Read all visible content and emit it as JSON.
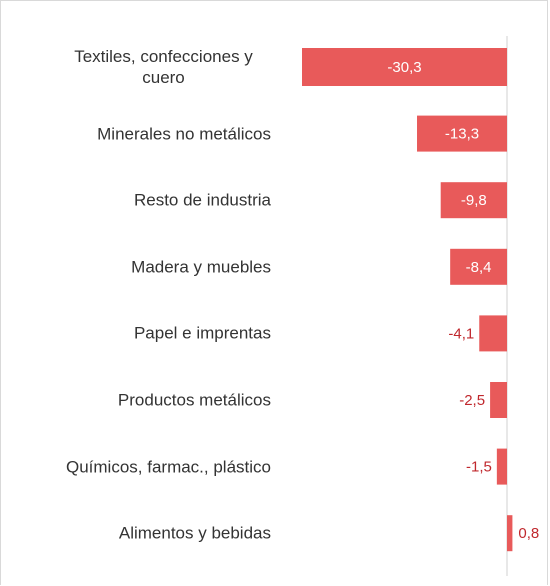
{
  "chart_data": {
    "type": "hbar",
    "categories": [
      "Textiles, confecciones y cuero",
      "Minerales no metálicos",
      "Resto de industria",
      "Madera y muebles",
      "Papel e imprentas",
      "Productos metálicos",
      "Químicos, farmac., plástico",
      "Alimentos y bebidas"
    ],
    "values": [
      -30.3,
      -13.3,
      -9.8,
      -8.4,
      -4.1,
      -2.5,
      -1.5,
      0.8
    ],
    "value_labels": [
      "-30,3",
      "-13,3",
      "-9,8",
      "-8,4",
      "-4,1",
      "-2,5",
      "-1,5",
      "0,8"
    ],
    "color": "#e85a5a"
  }
}
